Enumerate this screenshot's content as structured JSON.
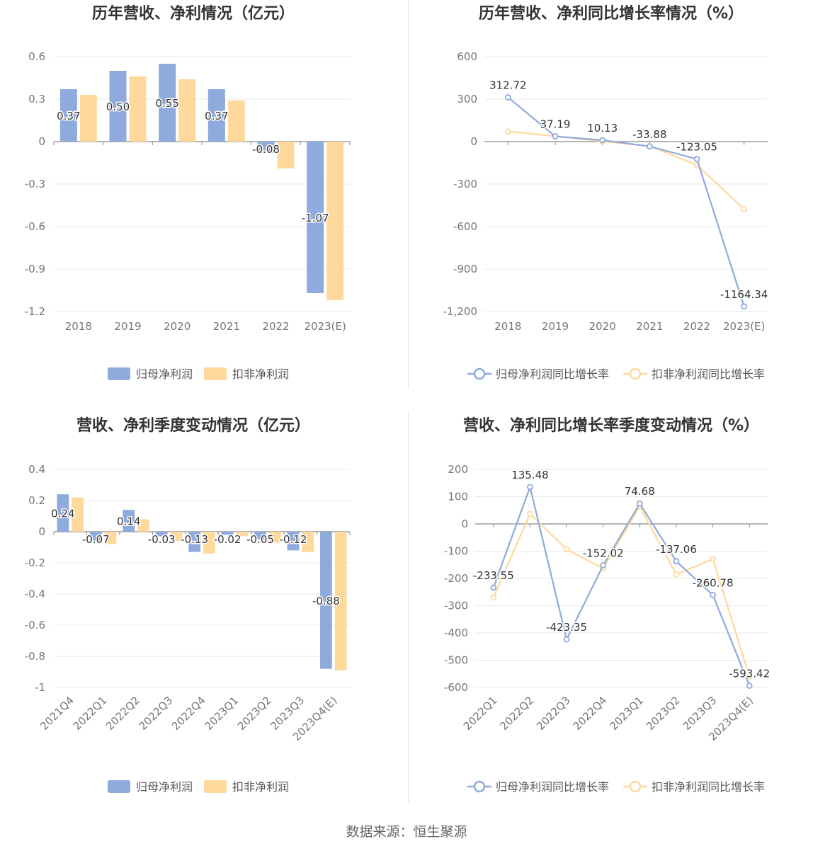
{
  "footer": "数据来源：恒生聚源",
  "chart_data": [
    {
      "type": "bar",
      "title": "历年营收、净利情况（亿元）",
      "categories": [
        "2018",
        "2019",
        "2020",
        "2021",
        "2022",
        "2023(E)"
      ],
      "ylim": [
        -1.2,
        0.6
      ],
      "yticks": [
        0.6,
        0.3,
        0,
        -0.3,
        -0.6,
        -0.9,
        -1.2
      ],
      "ytick_labels": [
        "0.6",
        "0.3",
        "0",
        "-0.3",
        "-0.6",
        "-0.9",
        "-1.2"
      ],
      "series": [
        {
          "name": "归母净利润",
          "values": [
            0.37,
            0.5,
            0.55,
            0.37,
            -0.08,
            -1.07
          ],
          "labels": [
            "0.37",
            "0.50",
            "0.55",
            "0.37",
            "-0.08",
            "-1.07"
          ],
          "color": "#8faadc"
        },
        {
          "name": "扣非净利润",
          "values": [
            0.33,
            0.46,
            0.44,
            0.29,
            -0.19,
            -1.12
          ],
          "color": "#ffd99b"
        }
      ],
      "grid": true,
      "legend": "bottom"
    },
    {
      "type": "line",
      "title": "历年营收、净利同比增长率情况（%）",
      "categories": [
        "2018",
        "2019",
        "2020",
        "2021",
        "2022",
        "2023(E)"
      ],
      "ylim": [
        -1200,
        600
      ],
      "yticks": [
        600,
        300,
        0,
        -300,
        -600,
        -900,
        -1200
      ],
      "ytick_labels": [
        "600",
        "300",
        "0",
        "-300",
        "-600",
        "-900",
        "-1,200"
      ],
      "series": [
        {
          "name": "归母净利润同比增长率",
          "values": [
            312.72,
            37.19,
            10.13,
            -33.88,
            -123.05,
            -1164.34
          ],
          "labels": [
            "312.72",
            "37.19",
            "10.13",
            "-33.88",
            "-123.05",
            "-1164.34"
          ],
          "color": "#8faadc"
        },
        {
          "name": "扣非净利润同比增长率",
          "values": [
            72,
            38,
            2,
            -32,
            -165,
            -477
          ],
          "color": "#ffd99b"
        }
      ],
      "grid": true,
      "legend": "bottom"
    },
    {
      "type": "bar",
      "title": "营收、净利季度变动情况（亿元）",
      "categories": [
        "2021Q4",
        "2022Q1",
        "2022Q2",
        "2022Q3",
        "2022Q4",
        "2023Q1",
        "2023Q2",
        "2023Q3",
        "2023Q4(E)"
      ],
      "ylim": [
        -1,
        0.4
      ],
      "yticks": [
        0.4,
        0.2,
        0,
        -0.2,
        -0.4,
        -0.6,
        -0.8,
        -1
      ],
      "ytick_labels": [
        "0.4",
        "0.2",
        "0",
        "-0.2",
        "-0.4",
        "-0.6",
        "-0.8",
        "-1"
      ],
      "series": [
        {
          "name": "归母净利润",
          "values": [
            0.24,
            -0.07,
            0.14,
            -0.03,
            -0.13,
            -0.02,
            -0.05,
            -0.12,
            -0.88
          ],
          "labels": [
            "0.24",
            "-0.07",
            "0.14",
            "-0.03",
            "-0.13",
            "-0.02",
            "-0.05",
            "-0.12",
            "-0.88"
          ],
          "color": "#8faadc"
        },
        {
          "name": "扣非净利润",
          "values": [
            0.22,
            -0.08,
            0.08,
            -0.06,
            -0.14,
            -0.03,
            -0.07,
            -0.13,
            -0.89
          ],
          "color": "#ffd99b"
        }
      ],
      "grid": true,
      "legend": "bottom"
    },
    {
      "type": "line",
      "title": "营收、净利同比增长率季度变动情况（%）",
      "categories": [
        "2022Q1",
        "2022Q2",
        "2022Q3",
        "2022Q4",
        "2023Q1",
        "2023Q2",
        "2023Q3",
        "2023Q4(E)"
      ],
      "ylim": [
        -600,
        200
      ],
      "yticks": [
        200,
        100,
        0,
        -100,
        -200,
        -300,
        -400,
        -500,
        -600
      ],
      "ytick_labels": [
        "200",
        "100",
        "0",
        "-100",
        "-200",
        "-300",
        "-400",
        "-500",
        "-600"
      ],
      "series": [
        {
          "name": "归母净利润同比增长率",
          "values": [
            -233.55,
            135.48,
            -423.35,
            -152.02,
            74.68,
            -137.06,
            -260.78,
            -593.42
          ],
          "labels": [
            "-233.55",
            "135.48",
            "-423.35",
            "-152.02",
            "74.68",
            "-137.06",
            "-260.78",
            "-593.42"
          ],
          "color": "#8faadc"
        },
        {
          "name": "扣非净利润同比增长率",
          "values": [
            -270,
            37,
            -93,
            -163,
            64,
            -185,
            -129,
            -560
          ],
          "color": "#ffd99b"
        }
      ],
      "grid": true,
      "legend": "bottom"
    }
  ]
}
